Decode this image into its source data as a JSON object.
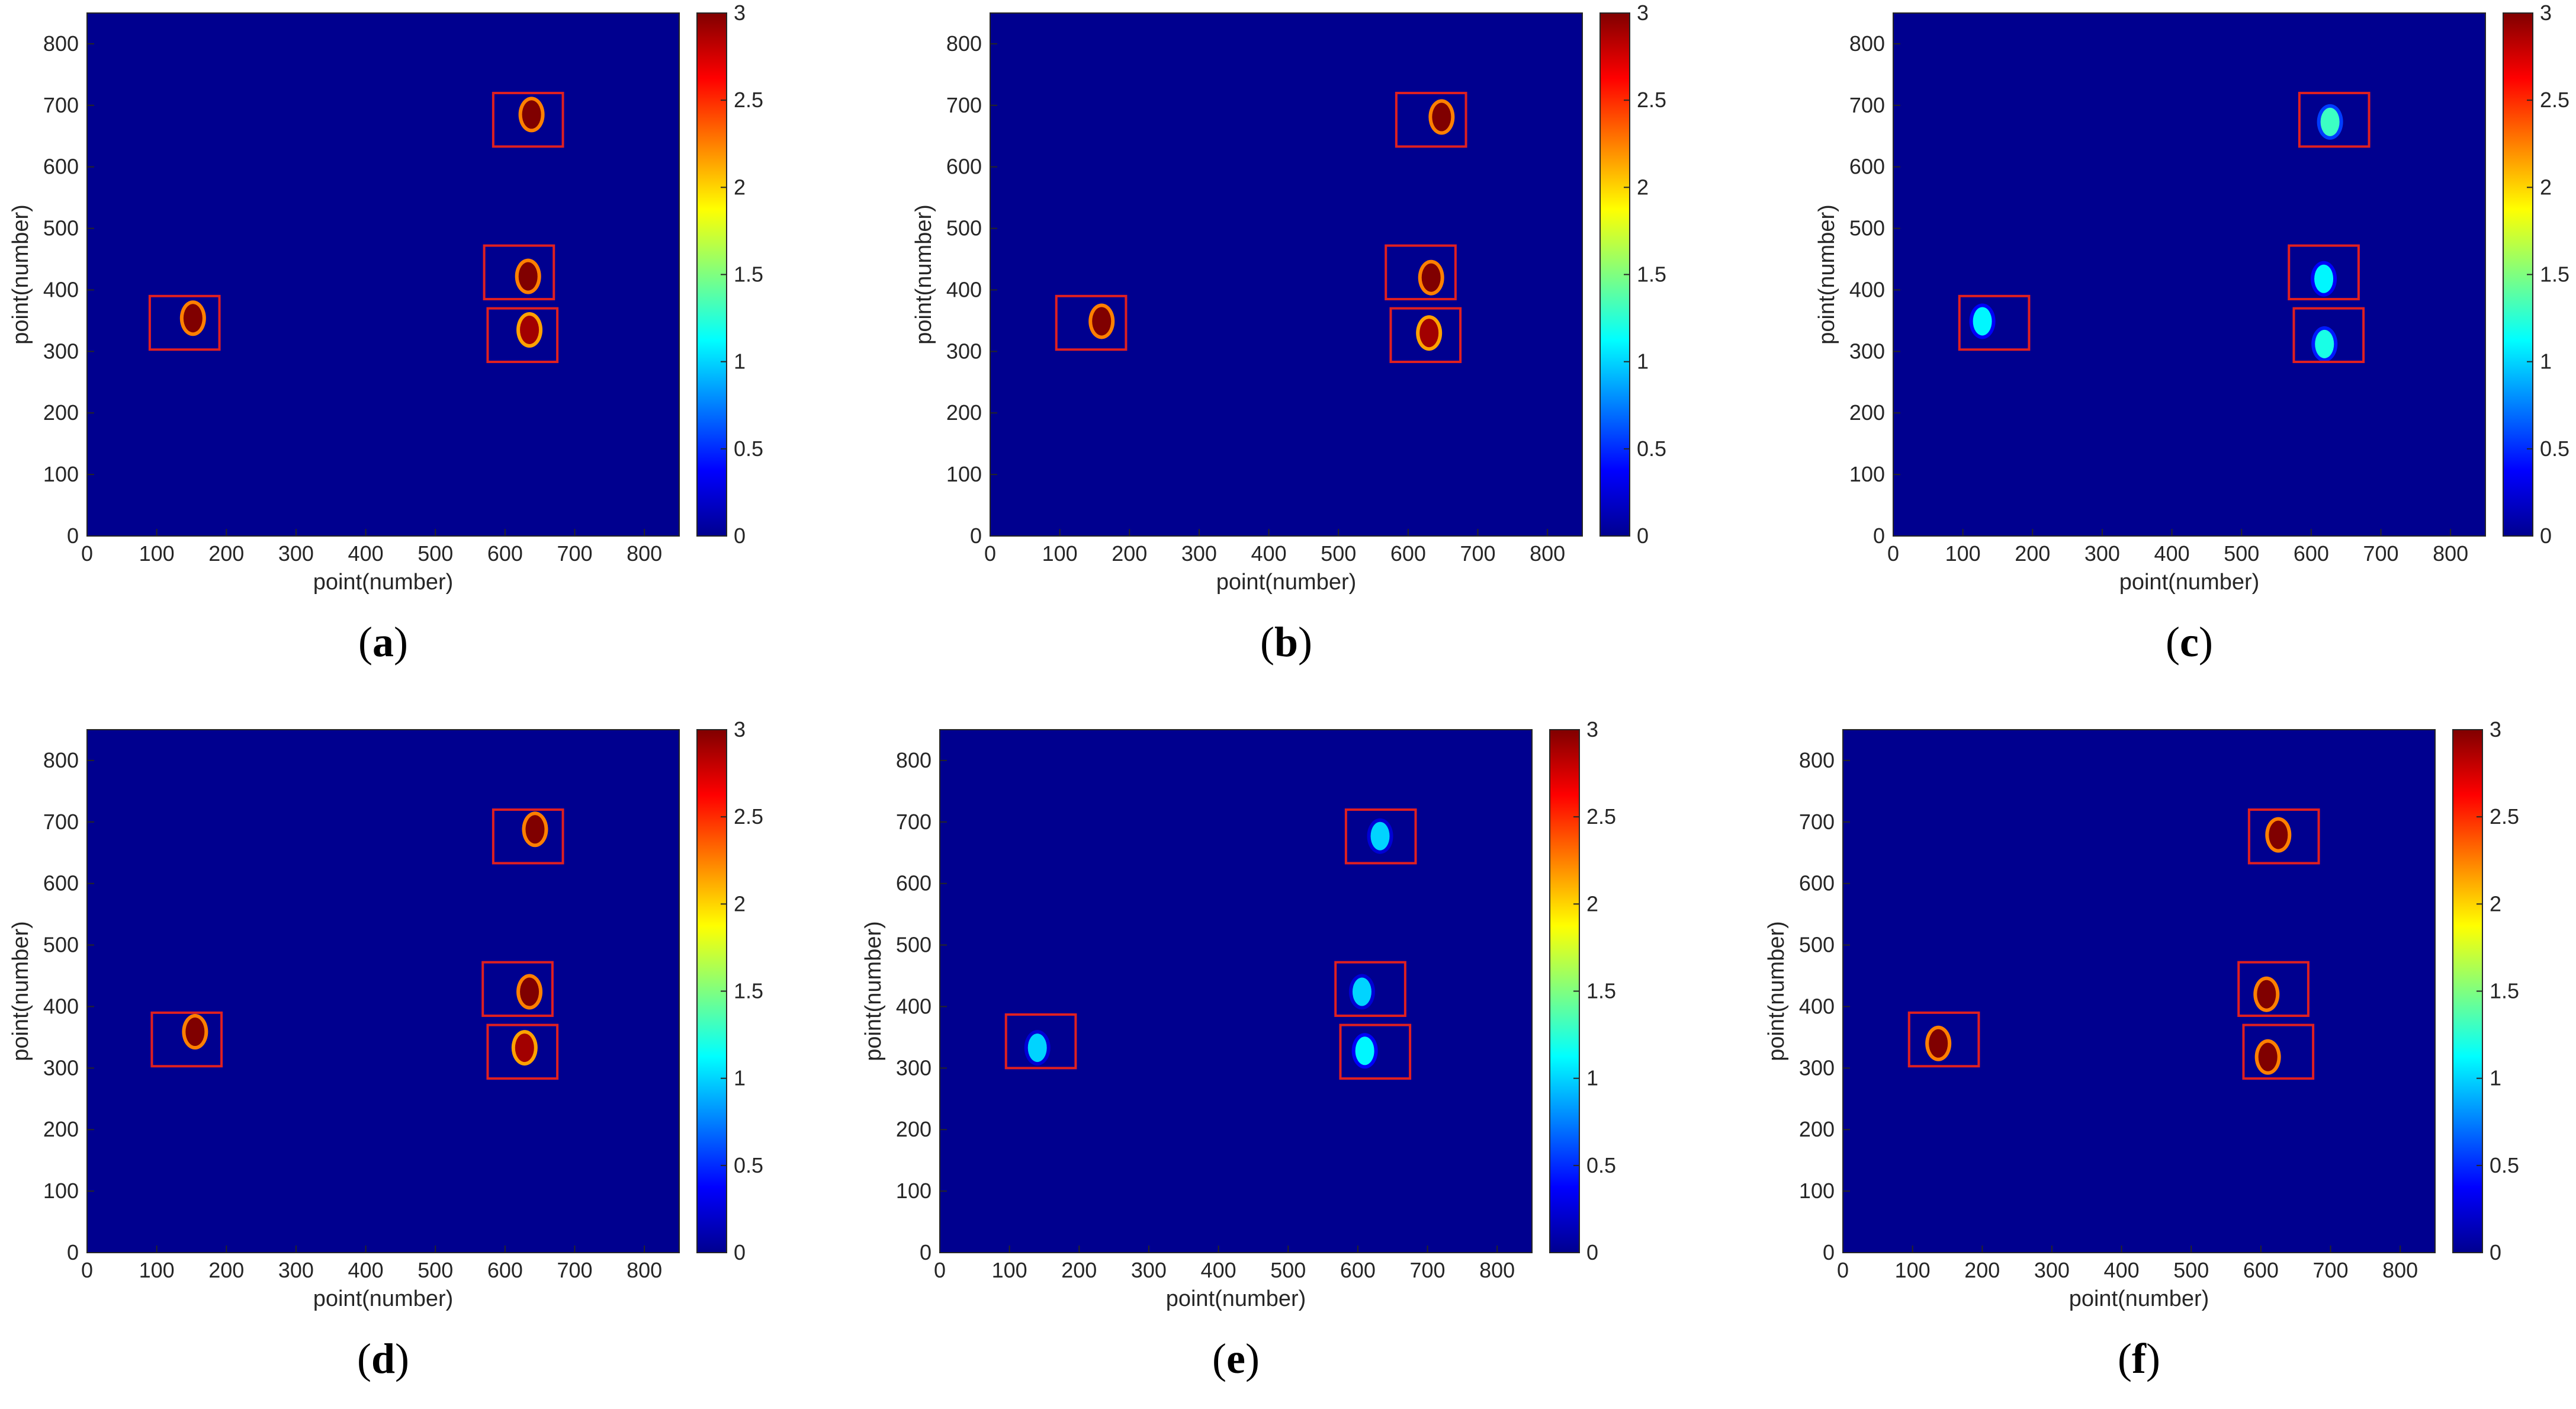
{
  "colormap": "jet",
  "colors": {
    "background": "#00008F",
    "box": "#E02020",
    "axis": "#262626"
  },
  "chart_data": [
    {
      "type": "heatmap",
      "caption": "a",
      "xlabel": "point(number)",
      "ylabel": "point(number)",
      "xlim": [
        0,
        850
      ],
      "ylim": [
        0,
        850
      ],
      "xticks": [
        0,
        100,
        200,
        300,
        400,
        500,
        600,
        700,
        800
      ],
      "yticks": [
        0,
        100,
        200,
        300,
        400,
        500,
        600,
        700,
        800
      ],
      "colorbar": {
        "range": [
          0,
          3
        ],
        "ticks": [
          0,
          0.5,
          1,
          1.5,
          2,
          2.5,
          3
        ]
      },
      "regions": [
        {
          "x": [
            90,
            190
          ],
          "y": [
            303,
            390
          ]
        },
        {
          "x": [
            570,
            670
          ],
          "y": [
            385,
            472
          ]
        },
        {
          "x": [
            575,
            675
          ],
          "y": [
            283,
            370
          ]
        },
        {
          "x": [
            583,
            683
          ],
          "y": [
            633,
            720
          ]
        }
      ],
      "blobs": [
        {
          "x": 152,
          "y": 354,
          "value": 3
        },
        {
          "x": 633,
          "y": 422,
          "value": 3
        },
        {
          "x": 635,
          "y": 335,
          "value": 2.9
        },
        {
          "x": 638,
          "y": 685,
          "value": 3
        }
      ]
    },
    {
      "type": "heatmap",
      "caption": "b",
      "xlabel": "point(number)",
      "ylabel": "point(number)",
      "xlim": [
        0,
        850
      ],
      "ylim": [
        0,
        850
      ],
      "xticks": [
        0,
        100,
        200,
        300,
        400,
        500,
        600,
        700,
        800
      ],
      "yticks": [
        0,
        100,
        200,
        300,
        400,
        500,
        600,
        700,
        800
      ],
      "colorbar": {
        "range": [
          0,
          3
        ],
        "ticks": [
          0,
          0.5,
          1,
          1.5,
          2,
          2.5,
          3
        ]
      },
      "regions": [
        {
          "x": [
            95,
            195
          ],
          "y": [
            303,
            390
          ]
        },
        {
          "x": [
            568,
            668
          ],
          "y": [
            385,
            472
          ]
        },
        {
          "x": [
            575,
            675
          ],
          "y": [
            283,
            370
          ]
        },
        {
          "x": [
            583,
            683
          ],
          "y": [
            633,
            720
          ]
        }
      ],
      "blobs": [
        {
          "x": 160,
          "y": 349,
          "value": 3
        },
        {
          "x": 633,
          "y": 420,
          "value": 3
        },
        {
          "x": 630,
          "y": 330,
          "value": 2.9
        },
        {
          "x": 648,
          "y": 681,
          "value": 3
        }
      ]
    },
    {
      "type": "heatmap",
      "caption": "c",
      "xlabel": "point(number)",
      "ylabel": "point(number)",
      "xlim": [
        0,
        850
      ],
      "ylim": [
        0,
        850
      ],
      "xticks": [
        0,
        100,
        200,
        300,
        400,
        500,
        600,
        700,
        800
      ],
      "yticks": [
        0,
        100,
        200,
        300,
        400,
        500,
        600,
        700,
        800
      ],
      "colorbar": {
        "range": [
          0,
          3
        ],
        "ticks": [
          0,
          0.5,
          1,
          1.5,
          2,
          2.5,
          3
        ]
      },
      "regions": [
        {
          "x": [
            95,
            195
          ],
          "y": [
            303,
            390
          ]
        },
        {
          "x": [
            568,
            668
          ],
          "y": [
            385,
            472
          ]
        },
        {
          "x": [
            575,
            675
          ],
          "y": [
            283,
            370
          ]
        },
        {
          "x": [
            583,
            683
          ],
          "y": [
            633,
            720
          ]
        }
      ],
      "blobs": [
        {
          "x": 128,
          "y": 349,
          "value": 1.1
        },
        {
          "x": 618,
          "y": 418,
          "value": 1.1
        },
        {
          "x": 619,
          "y": 312,
          "value": 1.2
        },
        {
          "x": 627,
          "y": 673,
          "value": 1.3
        }
      ]
    },
    {
      "type": "heatmap",
      "caption": "d",
      "xlabel": "point(number)",
      "ylabel": "point(number)",
      "xlim": [
        0,
        850
      ],
      "ylim": [
        0,
        850
      ],
      "xticks": [
        0,
        100,
        200,
        300,
        400,
        500,
        600,
        700,
        800
      ],
      "yticks": [
        0,
        100,
        200,
        300,
        400,
        500,
        600,
        700,
        800
      ],
      "colorbar": {
        "range": [
          0,
          3
        ],
        "ticks": [
          0,
          0.5,
          1,
          1.5,
          2,
          2.5,
          3
        ]
      },
      "regions": [
        {
          "x": [
            93,
            193
          ],
          "y": [
            303,
            390
          ]
        },
        {
          "x": [
            568,
            668
          ],
          "y": [
            385,
            472
          ]
        },
        {
          "x": [
            575,
            675
          ],
          "y": [
            283,
            370
          ]
        },
        {
          "x": [
            583,
            683
          ],
          "y": [
            633,
            720
          ]
        }
      ],
      "blobs": [
        {
          "x": 155,
          "y": 359,
          "value": 3
        },
        {
          "x": 635,
          "y": 424,
          "value": 3
        },
        {
          "x": 628,
          "y": 333,
          "value": 2.9
        },
        {
          "x": 643,
          "y": 688,
          "value": 3
        }
      ]
    },
    {
      "type": "heatmap",
      "caption": "e",
      "xlabel": "point(number)",
      "ylabel": "point(number)",
      "xlim": [
        0,
        850
      ],
      "ylim": [
        0,
        850
      ],
      "xticks": [
        0,
        100,
        200,
        300,
        400,
        500,
        600,
        700,
        800
      ],
      "yticks": [
        0,
        100,
        200,
        300,
        400,
        500,
        600,
        700,
        800
      ],
      "colorbar": {
        "range": [
          0,
          3
        ],
        "ticks": [
          0,
          0.5,
          1,
          1.5,
          2,
          2.5,
          3
        ]
      },
      "regions": [
        {
          "x": [
            95,
            195
          ],
          "y": [
            300,
            387
          ]
        },
        {
          "x": [
            568,
            668
          ],
          "y": [
            385,
            472
          ]
        },
        {
          "x": [
            575,
            675
          ],
          "y": [
            283,
            370
          ]
        },
        {
          "x": [
            583,
            683
          ],
          "y": [
            633,
            720
          ]
        }
      ],
      "blobs": [
        {
          "x": 140,
          "y": 333,
          "value": 1.0
        },
        {
          "x": 606,
          "y": 424,
          "value": 1.0
        },
        {
          "x": 610,
          "y": 328,
          "value": 1.1
        },
        {
          "x": 632,
          "y": 677,
          "value": 1.0
        }
      ]
    },
    {
      "type": "heatmap",
      "caption": "f",
      "xlabel": "point(number)",
      "ylabel": "point(number)",
      "xlim": [
        0,
        850
      ],
      "ylim": [
        0,
        850
      ],
      "xticks": [
        0,
        100,
        200,
        300,
        400,
        500,
        600,
        700,
        800
      ],
      "yticks": [
        0,
        100,
        200,
        300,
        400,
        500,
        600,
        700,
        800
      ],
      "colorbar": {
        "range": [
          0,
          3
        ],
        "ticks": [
          0,
          0.5,
          1,
          1.5,
          2,
          2.5,
          3
        ]
      },
      "regions": [
        {
          "x": [
            95,
            195
          ],
          "y": [
            303,
            390
          ]
        },
        {
          "x": [
            568,
            668
          ],
          "y": [
            385,
            472
          ]
        },
        {
          "x": [
            575,
            675
          ],
          "y": [
            283,
            370
          ]
        },
        {
          "x": [
            583,
            683
          ],
          "y": [
            633,
            720
          ]
        }
      ],
      "blobs": [
        {
          "x": 137,
          "y": 340,
          "value": 3
        },
        {
          "x": 608,
          "y": 420,
          "value": 3
        },
        {
          "x": 610,
          "y": 318,
          "value": 3
        },
        {
          "x": 625,
          "y": 679,
          "value": 3
        }
      ]
    }
  ]
}
